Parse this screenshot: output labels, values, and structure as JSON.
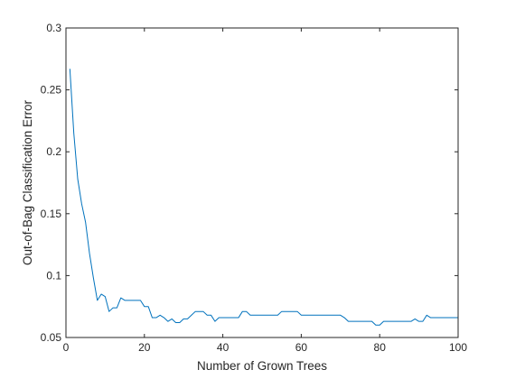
{
  "chart_data": {
    "type": "line",
    "xlabel": "Number of Grown Trees",
    "ylabel": "Out-of-Bag Classification Error",
    "xlim": [
      0,
      100
    ],
    "ylim": [
      0.05,
      0.3
    ],
    "xticks": [
      0,
      20,
      40,
      60,
      80,
      100
    ],
    "xtick_labels": [
      "0",
      "20",
      "40",
      "60",
      "80",
      "100"
    ],
    "yticks": [
      0.05,
      0.1,
      0.15,
      0.2,
      0.25,
      0.3
    ],
    "ytick_labels": [
      "0.05",
      "0.1",
      "0.15",
      "0.2",
      "0.25",
      "0.3"
    ],
    "grid": false,
    "box": true,
    "series": [
      {
        "color": "#0072bd",
        "x": [
          1,
          2,
          3,
          4,
          5,
          6,
          7,
          8,
          9,
          10,
          11,
          12,
          13,
          14,
          15,
          16,
          17,
          18,
          19,
          20,
          21,
          22,
          23,
          24,
          25,
          26,
          27,
          28,
          29,
          30,
          31,
          32,
          33,
          34,
          35,
          36,
          37,
          38,
          39,
          40,
          41,
          42,
          43,
          44,
          45,
          46,
          47,
          48,
          49,
          50,
          51,
          52,
          53,
          54,
          55,
          56,
          57,
          58,
          59,
          60,
          61,
          62,
          63,
          64,
          65,
          66,
          67,
          68,
          69,
          70,
          71,
          72,
          73,
          74,
          75,
          76,
          77,
          78,
          79,
          80,
          81,
          82,
          83,
          84,
          85,
          86,
          87,
          88,
          89,
          90,
          91,
          92,
          93,
          94,
          95,
          96,
          97,
          98,
          99,
          100
        ],
        "y": [
          0.267,
          0.215,
          0.178,
          0.158,
          0.143,
          0.118,
          0.098,
          0.08,
          0.085,
          0.083,
          0.071,
          0.074,
          0.074,
          0.082,
          0.08,
          0.08,
          0.08,
          0.08,
          0.08,
          0.075,
          0.075,
          0.066,
          0.066,
          0.068,
          0.066,
          0.063,
          0.065,
          0.062,
          0.062,
          0.065,
          0.065,
          0.068,
          0.071,
          0.071,
          0.071,
          0.068,
          0.068,
          0.063,
          0.066,
          0.066,
          0.066,
          0.066,
          0.066,
          0.066,
          0.071,
          0.071,
          0.068,
          0.068,
          0.068,
          0.068,
          0.068,
          0.068,
          0.068,
          0.068,
          0.071,
          0.071,
          0.071,
          0.071,
          0.071,
          0.068,
          0.068,
          0.068,
          0.068,
          0.068,
          0.068,
          0.068,
          0.068,
          0.068,
          0.068,
          0.068,
          0.066,
          0.063,
          0.063,
          0.063,
          0.063,
          0.063,
          0.063,
          0.063,
          0.06,
          0.06,
          0.063,
          0.063,
          0.063,
          0.063,
          0.063,
          0.063,
          0.063,
          0.063,
          0.065,
          0.063,
          0.063,
          0.068,
          0.066,
          0.066,
          0.066,
          0.066,
          0.066,
          0.066,
          0.066,
          0.066
        ]
      }
    ]
  }
}
